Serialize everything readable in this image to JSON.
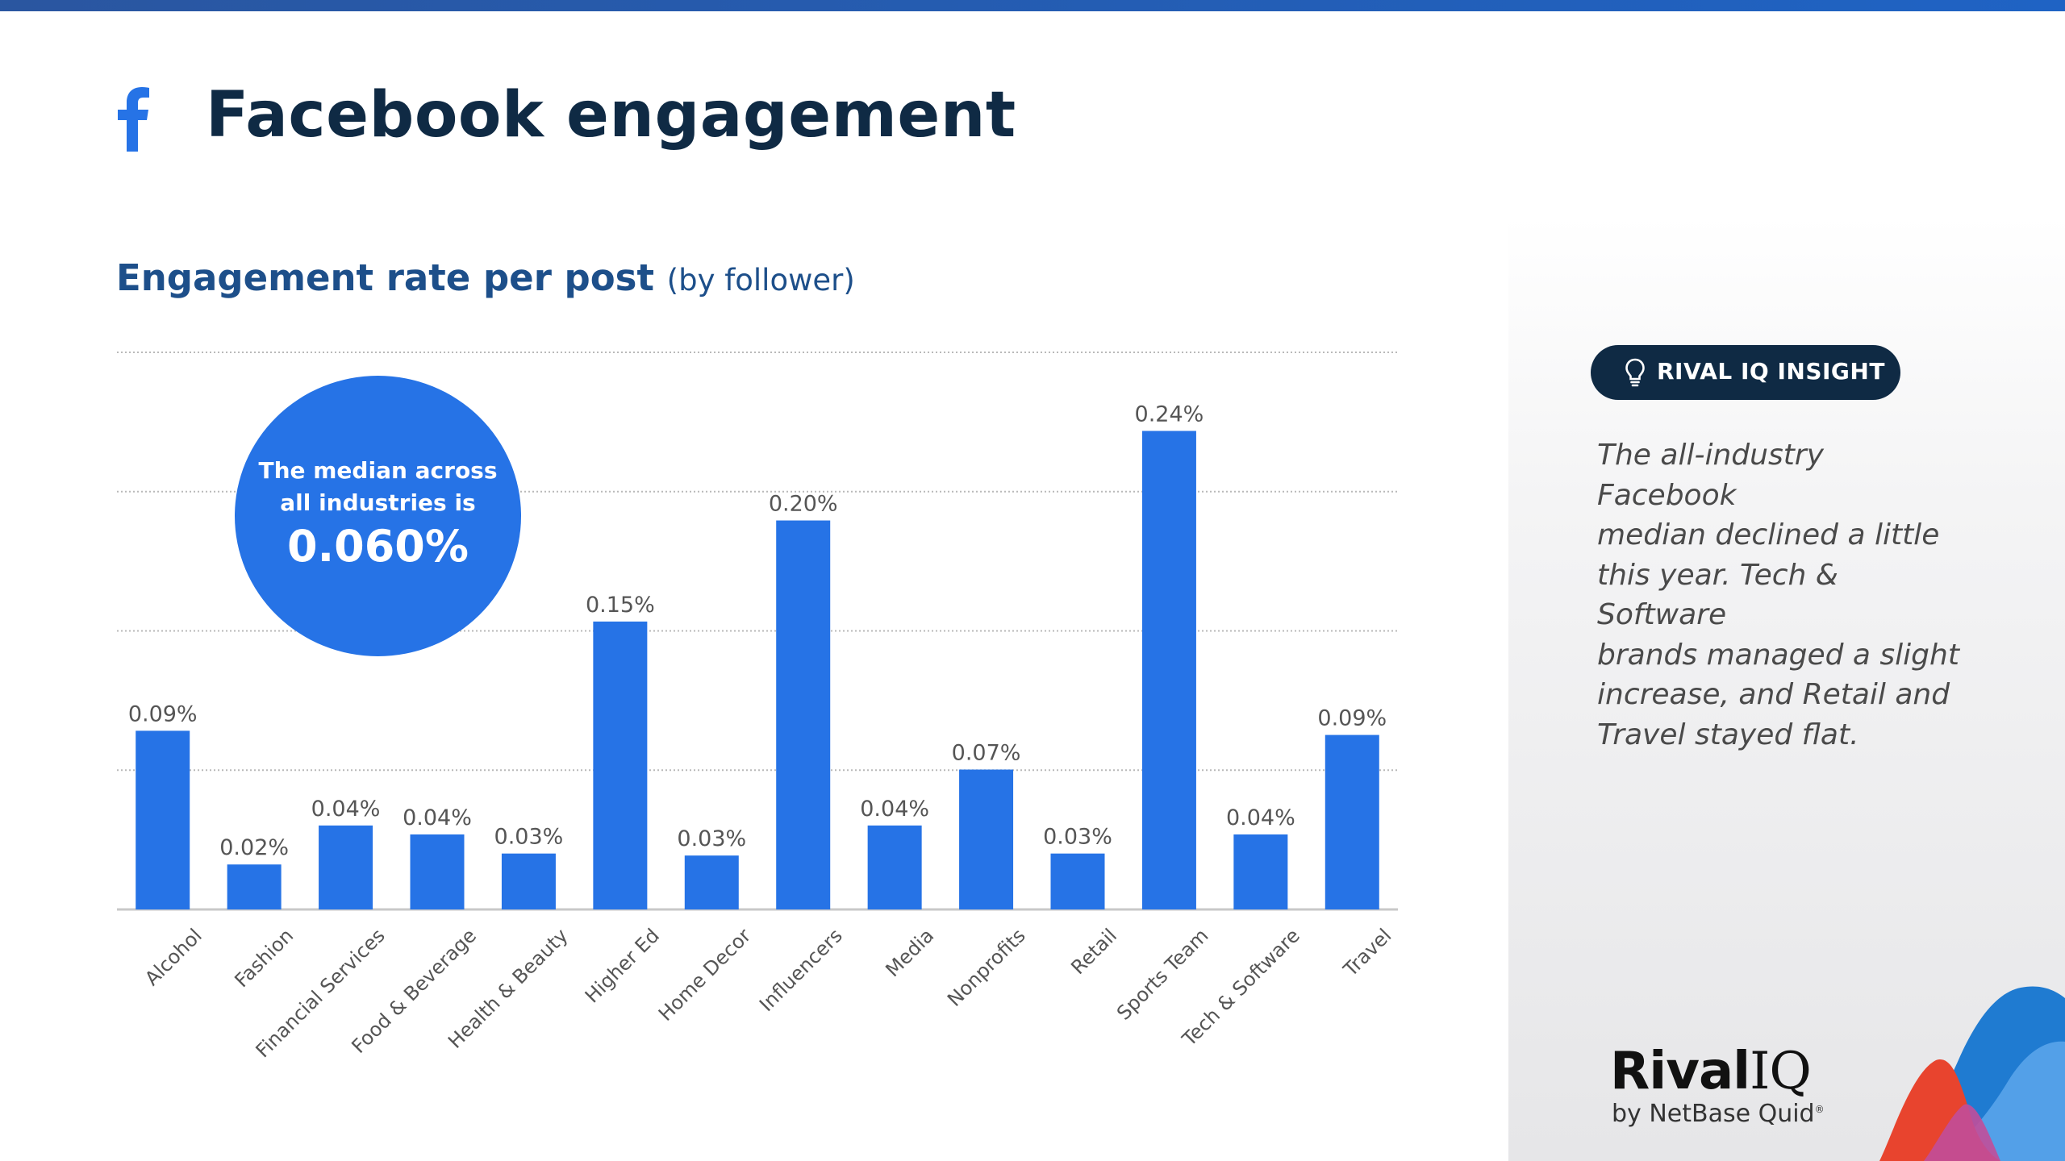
{
  "header": {
    "title": "Facebook engagement",
    "icon": "facebook-icon"
  },
  "chart_data": {
    "type": "bar",
    "title": "Engagement rate per post",
    "subtitle": "(by follower)",
    "xlabel": "",
    "ylabel": "",
    "ylim": [
      0,
      0.28
    ],
    "grid": true,
    "bar_color": "#2673e6",
    "categories": [
      "Alcohol",
      "Fashion",
      "Financial Services",
      "Food & Beverage",
      "Health & Beauty",
      "Higher Ed",
      "Home Decor",
      "Influencers",
      "Media",
      "Nonprofits",
      "Retail",
      "Sports Team",
      "Tech & Software",
      "Travel"
    ],
    "values": [
      0.09,
      0.02,
      0.04,
      0.04,
      0.03,
      0.15,
      0.03,
      0.2,
      0.04,
      0.07,
      0.03,
      0.24,
      0.04,
      0.09
    ],
    "plotted_values": [
      0.0898,
      0.0226,
      0.0422,
      0.0377,
      0.0281,
      0.1447,
      0.0271,
      0.1955,
      0.0422,
      0.0703,
      0.0281,
      0.2405,
      0.0377,
      0.0877
    ],
    "data_labels": [
      "0.09%",
      "0.02%",
      "0.04%",
      "0.04%",
      "0.03%",
      "0.15%",
      "0.03%",
      "0.20%",
      "0.04%",
      "0.07%",
      "0.03%",
      "0.24%",
      "0.04%",
      "0.09%"
    ]
  },
  "median_callout": {
    "line1": "The median across",
    "line2": "all industries is",
    "value": "0.060%"
  },
  "insight": {
    "badge_label": "RIVAL IQ INSIGHT",
    "badge_icon": "lightbulb-icon",
    "lines": [
      "The all-industry Facebook",
      "median declined a little",
      "this year. Tech & Software",
      "brands managed a slight",
      "increase, and Retail and",
      "Travel stayed flat."
    ]
  },
  "branding": {
    "logo_main": "Rival",
    "logo_iq": "IQ",
    "logo_sub": "by NetBase Quid",
    "logo_mark": "®"
  },
  "colors": {
    "navy": "#0f2a44",
    "accent_blue": "#2673e6",
    "title_blue": "#1d4f8a"
  }
}
